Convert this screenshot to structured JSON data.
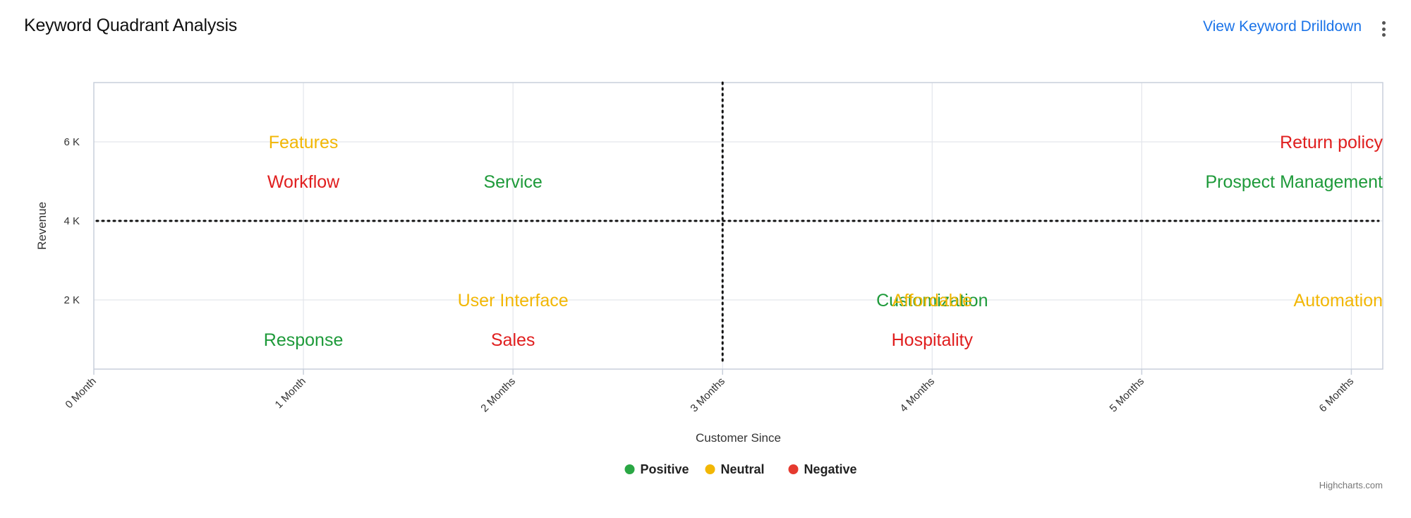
{
  "header": {
    "title": "Keyword Quadrant Analysis",
    "drilldown_link": "View Keyword Drilldown",
    "menu_icon": "kebab-menu-icon"
  },
  "credits": "Highcharts.com",
  "chart_data": {
    "type": "scatter",
    "title": "",
    "xlabel": "Customer Since",
    "ylabel": "Revenue",
    "xlim": [
      0,
      6.15
    ],
    "ylim": [
      250,
      7500
    ],
    "x_ticks": [
      {
        "value": 0,
        "label": "0 Month"
      },
      {
        "value": 1,
        "label": "1 Month"
      },
      {
        "value": 2,
        "label": "2 Months"
      },
      {
        "value": 3,
        "label": "3 Months"
      },
      {
        "value": 4,
        "label": "4 Months"
      },
      {
        "value": 5,
        "label": "5 Months"
      },
      {
        "value": 6,
        "label": "6 Months"
      }
    ],
    "y_ticks": [
      {
        "value": 2000,
        "label": "2 K"
      },
      {
        "value": 4000,
        "label": "4 K"
      },
      {
        "value": 6000,
        "label": "6 K"
      }
    ],
    "grid": true,
    "quadrant_lines": {
      "x": 3,
      "y": 4000
    },
    "legend_position": "bottom-center",
    "legend": [
      {
        "name": "Positive",
        "color": "#2aa744"
      },
      {
        "name": "Neutral",
        "color": "#f2b705"
      },
      {
        "name": "Negative",
        "color": "#e53a2f"
      }
    ],
    "series": [
      {
        "name": "Positive",
        "color": "#1e9a3a",
        "points": [
          {
            "label": "Service",
            "x": 2,
            "y": 5000
          },
          {
            "label": "Prospect Management",
            "x": 6,
            "y": 5000
          },
          {
            "label": "Customization",
            "x": 4,
            "y": 2000
          },
          {
            "label": "Response",
            "x": 1,
            "y": 1000
          }
        ]
      },
      {
        "name": "Neutral",
        "color": "#f2b705",
        "points": [
          {
            "label": "Features",
            "x": 1,
            "y": 6000
          },
          {
            "label": "User Interface",
            "x": 2,
            "y": 2000
          },
          {
            "label": "Affordable",
            "x": 4,
            "y": 2000
          },
          {
            "label": "Automation",
            "x": 6,
            "y": 2000
          }
        ]
      },
      {
        "name": "Negative",
        "color": "#e01e1e",
        "points": [
          {
            "label": "Workflow",
            "x": 1,
            "y": 5000
          },
          {
            "label": "Return policy",
            "x": 6,
            "y": 6000
          },
          {
            "label": "Sales",
            "x": 2,
            "y": 1000
          },
          {
            "label": "Hospitality",
            "x": 4,
            "y": 1000
          }
        ]
      }
    ]
  }
}
